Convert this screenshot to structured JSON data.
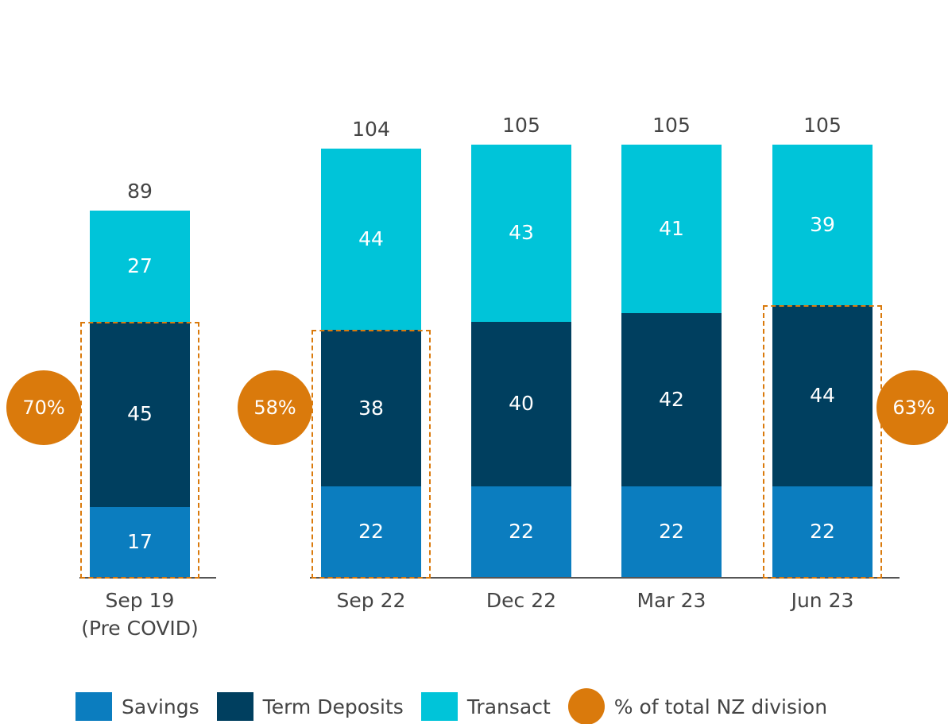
{
  "chart_data": {
    "type": "stacked_bar",
    "categories": [
      "Sep 19\n(Pre COVID)",
      "Sep 22",
      "Dec 22",
      "Mar 23",
      "Jun 23"
    ],
    "series": [
      {
        "name": "Savings",
        "color": "#0b7dbf",
        "values": [
          17,
          22,
          22,
          22,
          22
        ]
      },
      {
        "name": "Term Deposits",
        "color": "#003f5f",
        "values": [
          45,
          38,
          40,
          42,
          44
        ]
      },
      {
        "name": "Transact",
        "color": "#00c4d9",
        "values": [
          27,
          44,
          43,
          41,
          39
        ]
      }
    ],
    "totals": [
      89,
      104,
      105,
      105,
      105
    ],
    "share": {
      "name": "% of total NZ division",
      "color": "#da7a0c",
      "values": [
        70,
        58,
        null,
        null,
        63
      ],
      "value_labels": [
        "70%",
        "58%",
        null,
        null,
        "63%"
      ]
    }
  }
}
